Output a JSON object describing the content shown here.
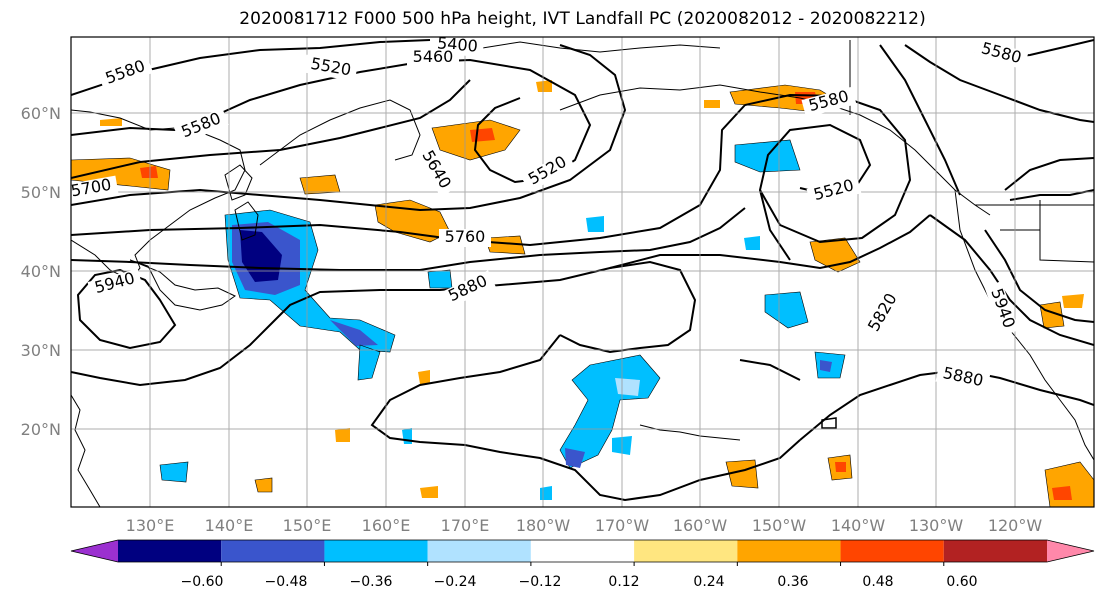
{
  "title": "2020081712 F000 500 hPa height, IVT Landfall PC (2020082012 - 2020082212)",
  "lat_labels": [
    "60°N",
    "50°N",
    "40°N",
    "30°N",
    "20°N"
  ],
  "lon_labels": [
    "130°E",
    "140°E",
    "150°E",
    "160°E",
    "170°E",
    "180°W",
    "170°W",
    "160°W",
    "150°W",
    "140°W",
    "130°W",
    "120°W"
  ],
  "contour_labels": [
    "5580",
    "5400",
    "5460",
    "5520",
    "5580",
    "5580",
    "5640",
    "5520",
    "5580",
    "5520",
    "5700",
    "5760",
    "5940",
    "5880",
    "5820",
    "5940",
    "5880"
  ],
  "colorbar": {
    "ticks": [
      "−0.60",
      "−0.48",
      "−0.36",
      "−0.24",
      "−0.12",
      "0.12",
      "0.24",
      "0.36",
      "0.48",
      "0.60"
    ],
    "colors": [
      "#9b30d0",
      "#000080",
      "#3a55cc",
      "#00bfff",
      "#b0e2ff",
      "#ffffff",
      "#ffe680",
      "#ffa500",
      "#ff4500",
      "#b22222",
      "#ff88aa"
    ]
  }
}
